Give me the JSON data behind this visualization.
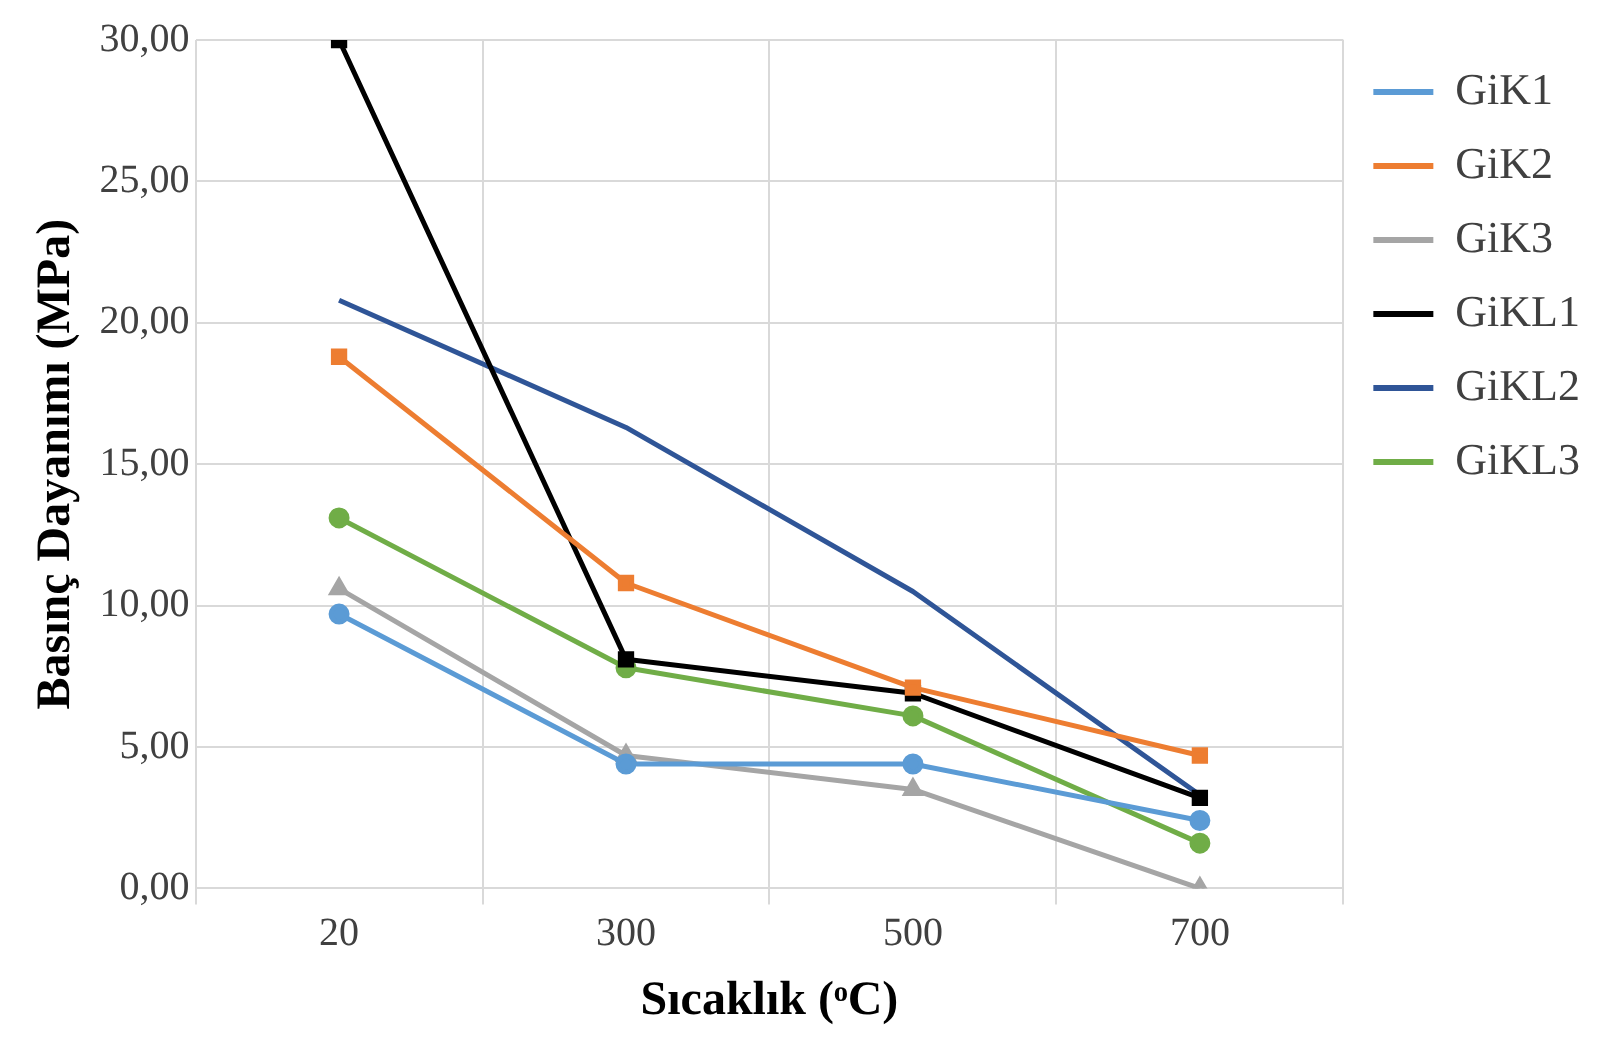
{
  "chart_data": {
    "type": "line",
    "xlabel": "Sıcaklık (ᵒC)",
    "ylabel": "Basınç Dayanımı (MPa)",
    "categories": [
      "20",
      "300",
      "500",
      "700"
    ],
    "ylim": [
      0,
      30
    ],
    "yticks": [
      {
        "value": 0,
        "label": "0,00"
      },
      {
        "value": 5,
        "label": "5,00"
      },
      {
        "value": 10,
        "label": "10,00"
      },
      {
        "value": 15,
        "label": "15,00"
      },
      {
        "value": 20,
        "label": "20,00"
      },
      {
        "value": 25,
        "label": "25,00"
      },
      {
        "value": 30,
        "label": "30,00"
      }
    ],
    "grid": true,
    "legend": "right",
    "series": [
      {
        "name": "GiK1",
        "color": "#5b9bd5",
        "marker": "circle",
        "values": [
          9.7,
          4.4,
          4.4,
          2.4
        ]
      },
      {
        "name": "GiK2",
        "color": "#ed7d31",
        "marker": "square",
        "values": [
          18.8,
          10.8,
          7.1,
          4.7
        ]
      },
      {
        "name": "GiK3",
        "color": "#a5a5a5",
        "marker": "triangle",
        "values": [
          10.6,
          4.7,
          3.5,
          0
        ]
      },
      {
        "name": "GiKL1",
        "color": "#000000",
        "marker": "square",
        "values": [
          30,
          8.1,
          6.9,
          3.2
        ]
      },
      {
        "name": "GiKL2",
        "color": "#2f5597",
        "marker": "none",
        "values": [
          20.8,
          16.3,
          10.5,
          3.3
        ]
      },
      {
        "name": "GiKL3",
        "color": "#70ad47",
        "marker": "circle",
        "values": [
          13.1,
          7.8,
          6.1,
          1.6
        ]
      }
    ]
  }
}
